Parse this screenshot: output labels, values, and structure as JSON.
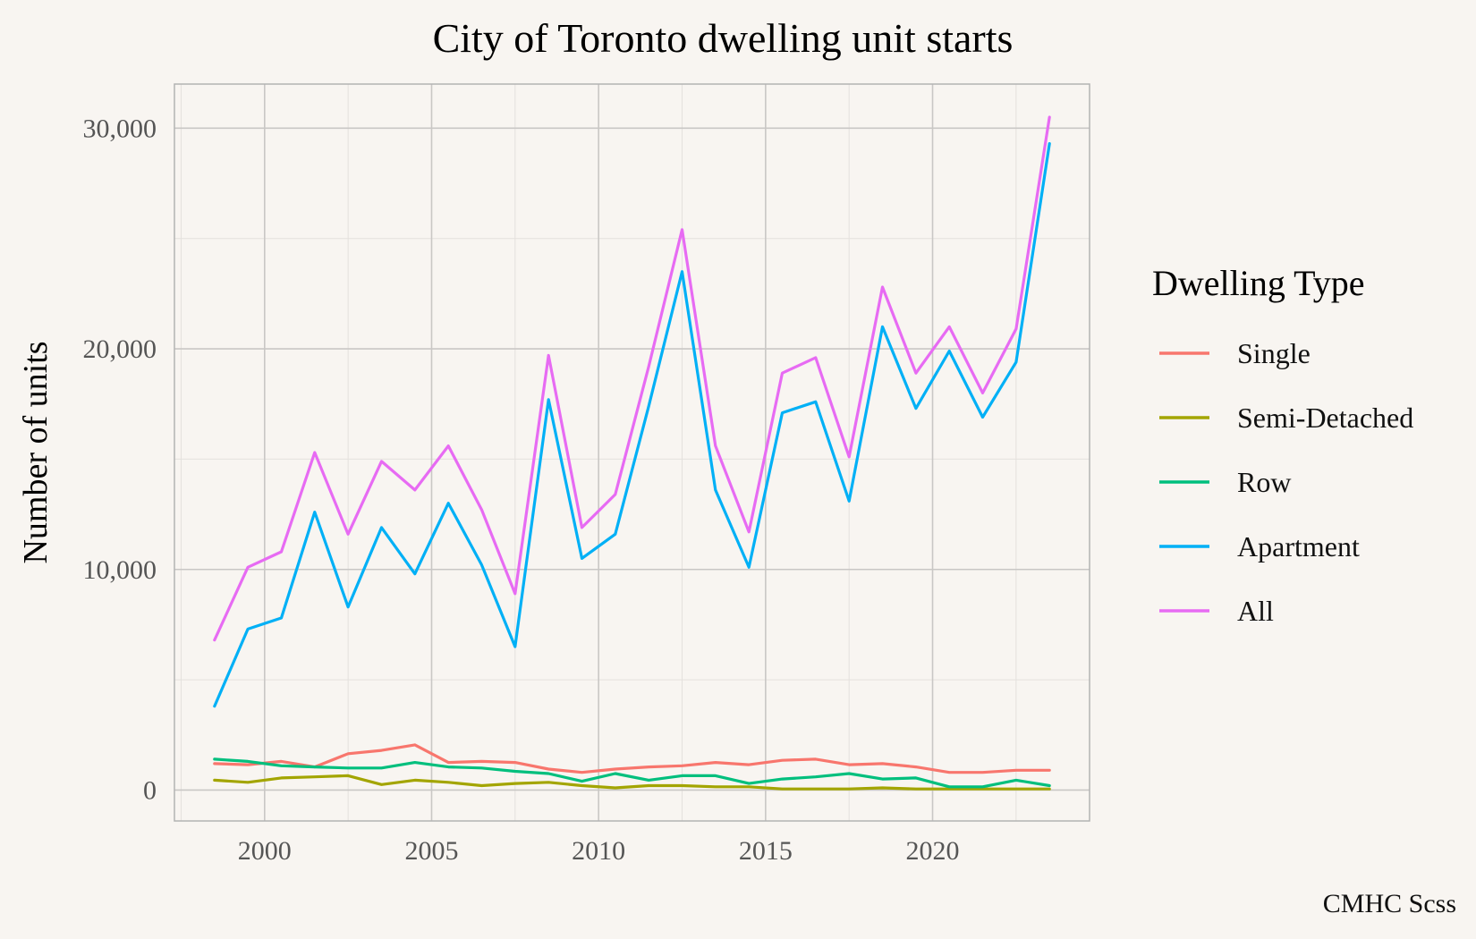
{
  "chart_data": {
    "type": "line",
    "title": "City of Toronto dwelling unit starts",
    "xlabel": "",
    "ylabel": "Number of units",
    "caption": "CMHC Scss",
    "legend_title": "Dwelling Type",
    "legend_position": "right",
    "grid": true,
    "xlim": [
      1997.3,
      2024.7
    ],
    "ylim": [
      -1400,
      32000
    ],
    "x_ticks": [
      2000,
      2005,
      2010,
      2015,
      2020
    ],
    "x_tick_labels": [
      "2000",
      "2005",
      "2010",
      "2015",
      "2020"
    ],
    "y_ticks": [
      0,
      10000,
      20000,
      30000
    ],
    "y_tick_labels": [
      "0",
      "10,000",
      "20,000",
      "30,000"
    ],
    "x": [
      1998.5,
      1999.5,
      2000.5,
      2001.5,
      2002.5,
      2003.5,
      2004.5,
      2005.5,
      2006.5,
      2007.5,
      2008.5,
      2009.5,
      2010.5,
      2011.5,
      2012.5,
      2013.5,
      2014.5,
      2015.5,
      2016.5,
      2017.5,
      2018.5,
      2019.5,
      2020.5,
      2021.5,
      2022.5,
      2023.5
    ],
    "series": [
      {
        "name": "Single",
        "color": "#F8766D",
        "values": [
          1200,
          1150,
          1300,
          1050,
          1650,
          1800,
          2050,
          1250,
          1300,
          1250,
          950,
          800,
          950,
          1050,
          1100,
          1250,
          1150,
          1350,
          1400,
          1150,
          1200,
          1050,
          800,
          800,
          900,
          900
        ]
      },
      {
        "name": "Semi-Detached",
        "color": "#A3A500",
        "values": [
          450,
          350,
          550,
          600,
          650,
          250,
          450,
          350,
          200,
          300,
          350,
          200,
          100,
          200,
          200,
          150,
          150,
          50,
          50,
          50,
          100,
          50,
          50,
          50,
          50,
          50
        ]
      },
      {
        "name": "Row",
        "color": "#00BF7D",
        "values": [
          1400,
          1300,
          1100,
          1050,
          1000,
          1000,
          1250,
          1050,
          1000,
          850,
          750,
          400,
          750,
          450,
          650,
          650,
          300,
          500,
          600,
          750,
          500,
          550,
          150,
          150,
          450,
          200
        ]
      },
      {
        "name": "Apartment",
        "color": "#00B0F6",
        "values": [
          3800,
          7300,
          7800,
          12600,
          8300,
          11900,
          9800,
          13000,
          10200,
          6500,
          17700,
          10500,
          11600,
          17400,
          23500,
          13600,
          10100,
          17100,
          17600,
          13100,
          21000,
          17300,
          19900,
          16900,
          19400,
          29300
        ]
      },
      {
        "name": "All",
        "color": "#E76BF3",
        "values": [
          6800,
          10100,
          10800,
          15300,
          11600,
          14900,
          13600,
          15600,
          12700,
          8900,
          19700,
          11900,
          13400,
          19200,
          25400,
          15600,
          11700,
          18900,
          19600,
          15100,
          22800,
          18900,
          21000,
          18000,
          20900,
          30500
        ]
      }
    ]
  }
}
